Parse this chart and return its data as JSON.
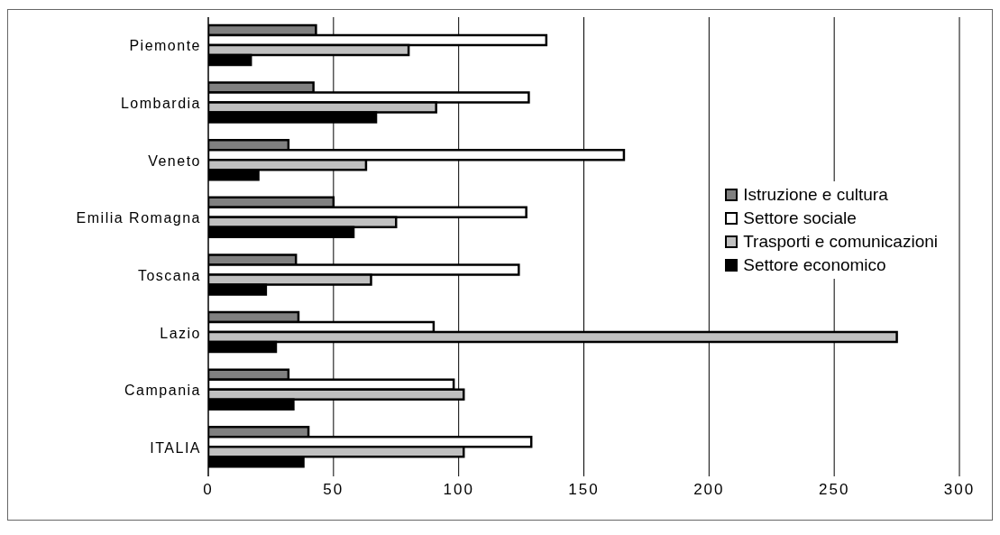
{
  "chart_data": {
    "type": "bar",
    "orientation": "horizontal",
    "categories": [
      "Piemonte",
      "Lombardia",
      "Veneto",
      "Emilia   Romagna",
      "Toscana",
      "Lazio",
      "Campania",
      "ITALIA"
    ],
    "series": [
      {
        "name": "Istruzione e cultura",
        "color": "#808080",
        "values": [
          43,
          42,
          32,
          50,
          35,
          36,
          32,
          40
        ]
      },
      {
        "name": "Settore sociale",
        "color": "#ffffff",
        "values": [
          135,
          128,
          166,
          127,
          124,
          90,
          98,
          129
        ]
      },
      {
        "name": "Trasporti e comunicazioni",
        "color": "#c0c0c0",
        "values": [
          80,
          91,
          63,
          75,
          65,
          275,
          102,
          102
        ]
      },
      {
        "name": "Settore economico",
        "color": "#000000",
        "values": [
          17,
          67,
          20,
          58,
          23,
          27,
          34,
          38
        ]
      }
    ],
    "xlim": [
      0,
      300
    ],
    "xticks": [
      0,
      50,
      100,
      150,
      200,
      250,
      300
    ],
    "grid": "x",
    "legend": "right"
  }
}
